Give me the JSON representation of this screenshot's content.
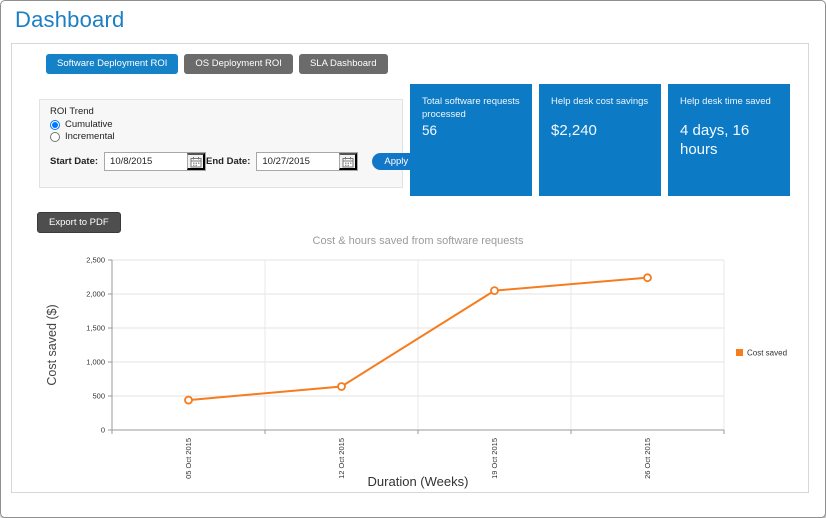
{
  "page": {
    "title": "Dashboard"
  },
  "tabs": [
    {
      "label": "Software Deployment ROI",
      "active": true
    },
    {
      "label": "OS Deployment ROI",
      "active": false
    },
    {
      "label": "SLA Dashboard",
      "active": false
    }
  ],
  "roi_trend": {
    "label": "ROI Trend",
    "options": [
      {
        "label": "Cumulative",
        "selected": true
      },
      {
        "label": "Incremental",
        "selected": false
      }
    ],
    "start_date_label": "Start Date:",
    "start_date_value": "10/8/2015",
    "end_date_label": "End Date:",
    "end_date_value": "10/27/2015",
    "apply_label": "Apply"
  },
  "kpi_cards": [
    {
      "label": "Total software requests processed",
      "value": "56"
    },
    {
      "label": "Help desk cost savings",
      "value": "$2,240"
    },
    {
      "label": "Help desk time saved",
      "value": "4 days, 16 hours"
    }
  ],
  "export_button_label": "Export to PDF",
  "chart_data": {
    "type": "line",
    "title": "Cost & hours saved from software requests",
    "xlabel": "Duration (Weeks)",
    "ylabel": "Cost saved ($)",
    "categories": [
      "05 Oct 2015",
      "12 Oct 2015",
      "19 Oct 2015",
      "26 Oct 2015"
    ],
    "series": [
      {
        "name": "Cost saved",
        "color": "#f57d1f",
        "values": [
          440,
          640,
          2050,
          2240
        ]
      }
    ],
    "ylim": [
      0,
      2500
    ],
    "ytick_step": 500,
    "ytick_labels": [
      "0",
      "500",
      "1,000",
      "1,500",
      "2,000",
      "2,500"
    ],
    "grid": true,
    "legend_position": "right"
  },
  "colors": {
    "accent_blue": "#1581c6",
    "card_blue": "#0d7ac6",
    "series_orange": "#f57d1f",
    "title_blue": "#1b7fc4"
  }
}
